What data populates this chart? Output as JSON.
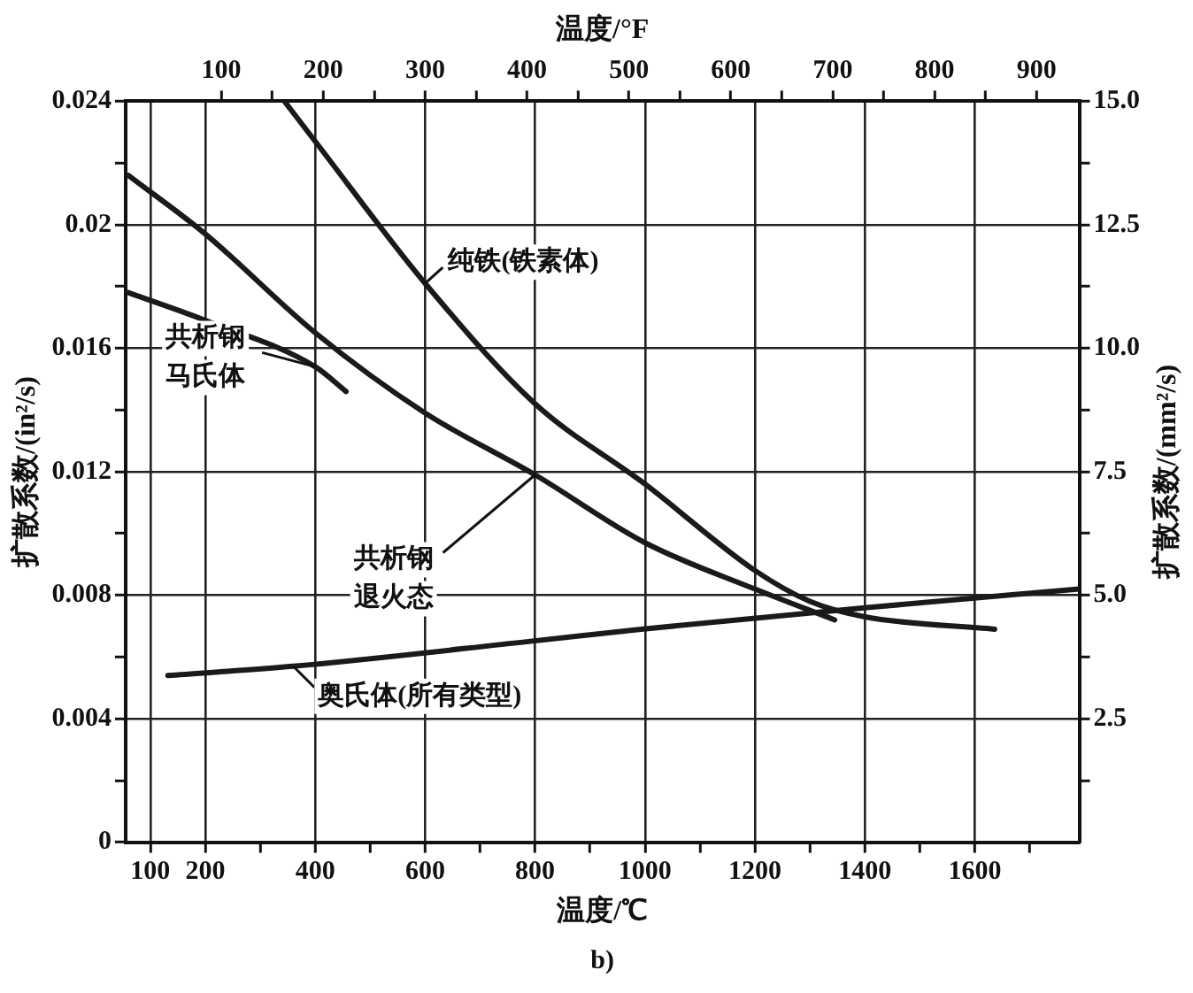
{
  "chart_data": {
    "type": "line",
    "xlabel": "温度/℃",
    "x2label": "温度/°F",
    "ylabel": "扩散系数/(in²/s)",
    "y2label": "扩散系数/(mm²/s)",
    "xlim": [
      55,
      1790
    ],
    "xticks": [
      100,
      200,
      {
        "value": 300,
        "label": null
      },
      400,
      {
        "value": 500,
        "label": null
      },
      600,
      {
        "value": 700,
        "label": null
      },
      800,
      {
        "value": 900,
        "label": null
      },
      1000,
      {
        "value": 1100,
        "label": null
      },
      1200,
      {
        "value": 1300,
        "label": null
      },
      1400,
      {
        "value": 1500,
        "label": null
      },
      1600,
      {
        "value": 1700,
        "label": null
      }
    ],
    "x2lim": [
      6,
      942
    ],
    "x2ticks": [
      100,
      {
        "value": 150,
        "label": null
      },
      200,
      {
        "value": 250,
        "label": null
      },
      300,
      {
        "value": 350,
        "label": null
      },
      400,
      {
        "value": 450,
        "label": null
      },
      500,
      {
        "value": 550,
        "label": null
      },
      600,
      {
        "value": 650,
        "label": null
      },
      700,
      {
        "value": 750,
        "label": null
      },
      800,
      {
        "value": 850,
        "label": null
      },
      900
    ],
    "ylim": [
      0,
      0.024
    ],
    "yticks": [
      0,
      {
        "value": 0.002,
        "label": null
      },
      0.004,
      {
        "value": 0.006,
        "label": null
      },
      0.008,
      {
        "value": 0.01,
        "label": null
      },
      0.012,
      {
        "value": 0.014,
        "label": null
      },
      0.016,
      {
        "value": 0.018,
        "label": null
      },
      0.02,
      {
        "value": 0.022,
        "label": null
      },
      0.024
    ],
    "y2lim": [
      0,
      15
    ],
    "y2ticks": [
      {
        "value": 1.25,
        "label": null
      },
      2.5,
      {
        "value": 3.75,
        "label": null
      },
      {
        "value": 5,
        "label": "5.0"
      },
      {
        "value": 6.25,
        "label": null
      },
      7.5,
      {
        "value": 8.75,
        "label": null
      },
      {
        "value": 10,
        "label": "10.0"
      },
      {
        "value": 11.25,
        "label": null
      },
      12.5,
      {
        "value": 13.75,
        "label": null
      },
      {
        "value": 15,
        "label": "15.0"
      }
    ],
    "grid": true,
    "legend": false,
    "marker": "none",
    "line_style": "solid",
    "series": [
      {
        "color": "#1a1a1a",
        "x": [
          344,
          400,
          600,
          800,
          1000,
          1200,
          1300,
          1400,
          1636
        ],
        "values": [
          0.024,
          0.0227,
          0.0181,
          0.0142,
          0.0116,
          0.0088,
          0.0078,
          0.0073,
          0.0069
        ]
      },
      {
        "color": "#1a1a1a",
        "x": [
          60,
          200,
          400,
          600,
          800,
          1000,
          1200,
          1345
        ],
        "values": [
          0.0216,
          0.0197,
          0.0165,
          0.0139,
          0.0119,
          0.0097,
          0.0082,
          0.0072
        ]
      },
      {
        "color": "#1a1a1a",
        "x": [
          60,
          200,
          400,
          456
        ],
        "values": [
          0.0178,
          0.0169,
          0.0154,
          0.0146
        ]
      },
      {
        "color": "#1a1a1a",
        "x": [
          132,
          360,
          788,
          993,
          1404,
          1790
        ],
        "values": [
          0.0054,
          0.0057,
          0.0065,
          0.0069,
          0.0076,
          0.0082
        ]
      }
    ],
    "annotations": [
      {
        "text": "纯铁(铁素体)",
        "x": 600,
        "y": 0.0181
      },
      {
        "text": "共析钢马氏体",
        "x": 400,
        "y": 0.0154
      },
      {
        "text": "共析钢退火态",
        "x": 800,
        "y": 0.0119
      },
      {
        "text": "奥氏体(所有类型)",
        "x": 360,
        "y": 0.0057
      },
      "b)"
    ]
  }
}
